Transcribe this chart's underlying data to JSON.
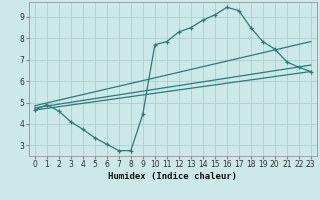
{
  "xlabel": "Humidex (Indice chaleur)",
  "bg_color": "#cce8e8",
  "line_color": "#2d7a7a",
  "grid_color": "#aacfcf",
  "xlim": [
    -0.5,
    23.5
  ],
  "ylim": [
    2.5,
    9.7
  ],
  "xticks": [
    0,
    1,
    2,
    3,
    4,
    5,
    6,
    7,
    8,
    9,
    10,
    11,
    12,
    13,
    14,
    15,
    16,
    17,
    18,
    19,
    20,
    21,
    22,
    23
  ],
  "yticks": [
    3,
    4,
    5,
    6,
    7,
    8,
    9
  ],
  "curve1_x": [
    0,
    1,
    2,
    3,
    4,
    5,
    6,
    7,
    8,
    9,
    10,
    11,
    12,
    13,
    14,
    15,
    16,
    17,
    18,
    19,
    20,
    21,
    22,
    23
  ],
  "curve1_y": [
    4.65,
    4.9,
    4.6,
    4.1,
    3.75,
    3.35,
    3.05,
    2.75,
    2.75,
    4.45,
    7.7,
    7.85,
    8.3,
    8.5,
    8.85,
    9.1,
    9.45,
    9.3,
    8.5,
    7.85,
    7.5,
    6.9,
    6.65,
    6.45
  ],
  "line1_x": [
    0,
    23
  ],
  "line1_y": [
    4.65,
    6.45
  ],
  "line2_x": [
    0,
    23
  ],
  "line2_y": [
    4.75,
    6.75
  ],
  "line3_x": [
    0,
    23
  ],
  "line3_y": [
    4.85,
    7.85
  ]
}
